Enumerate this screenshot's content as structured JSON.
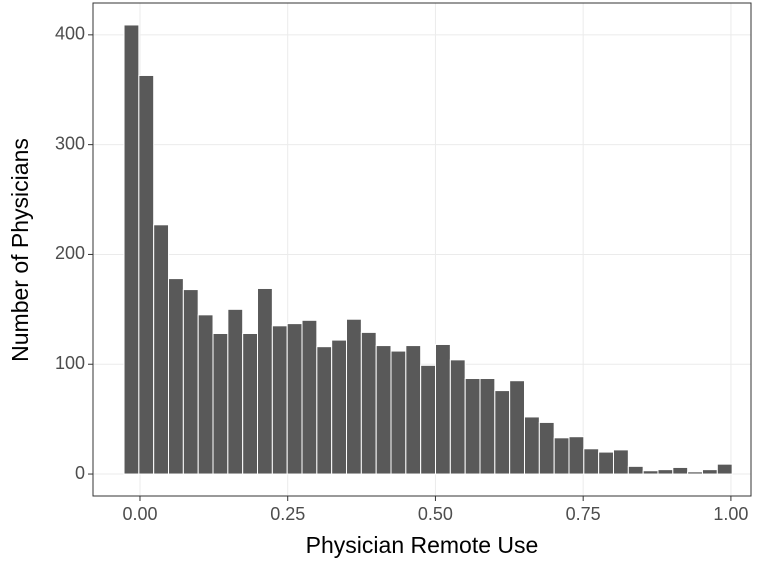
{
  "chart_data": {
    "type": "histogram",
    "x_label": "Physician Remote Use",
    "y_label": "Number of Physicians",
    "bins": [
      -0.027,
      -0.0019,
      0.0232,
      0.0483,
      0.0734,
      0.0985,
      0.1236,
      0.1487,
      0.1738,
      0.1989,
      0.224,
      0.2491,
      0.2742,
      0.2993,
      0.3244,
      0.3495,
      0.3746,
      0.3997,
      0.4248,
      0.4499,
      0.475,
      0.5001,
      0.5252,
      0.5503,
      0.5754,
      0.6005,
      0.6256,
      0.6507,
      0.6758,
      0.7009,
      0.726,
      0.7511,
      0.7762,
      0.8013,
      0.8264,
      0.8515,
      0.8766,
      0.9017,
      0.9268,
      0.9519,
      0.977,
      1.0021
    ],
    "counts": [
      409,
      363,
      227,
      178,
      168,
      145,
      128,
      150,
      128,
      169,
      135,
      137,
      140,
      116,
      122,
      141,
      129,
      117,
      112,
      117,
      99,
      118,
      104,
      87,
      87,
      76,
      85,
      52,
      47,
      33,
      34,
      23,
      20,
      22,
      7,
      3,
      4,
      6,
      2,
      4,
      9
    ],
    "color": "#595959",
    "xlim": [
      -0.0795,
      1.034
    ],
    "ylim": [
      -20,
      429
    ],
    "xticks": [
      {
        "value": 0,
        "label": "0.00"
      },
      {
        "value": 0.25,
        "label": "0.25"
      },
      {
        "value": 0.5,
        "label": "0.50"
      },
      {
        "value": 0.75,
        "label": "0.75"
      },
      {
        "value": 1,
        "label": "1.00"
      }
    ],
    "yticks": [
      0,
      100,
      200,
      300,
      400
    ],
    "grid": true
  }
}
